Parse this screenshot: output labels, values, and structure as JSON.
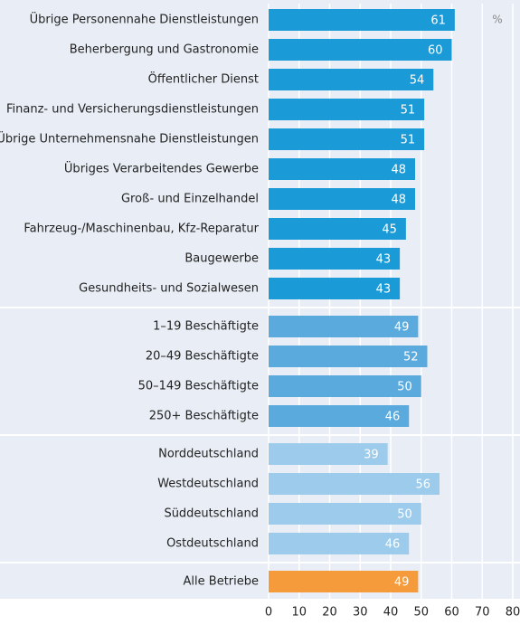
{
  "chart_data": {
    "type": "bar",
    "orientation": "horizontal",
    "unit": "%",
    "categories": [
      "Übrige Personennahe Dienstleistungen",
      "Beherbergung und Gastronomie",
      "Öffentlicher Dienst",
      "Finanz- und Versicherungsdienstleistungen",
      "Übrige Unternehmensnahe Dienstleistungen",
      "Übriges Verarbeitendes Gewerbe",
      "Groß- und Einzelhandel",
      "Fahrzeug-/Maschinenbau, Kfz-Reparatur",
      "Baugewerbe",
      "Gesundheits- und Sozialwesen",
      "1–19 Beschäftigte",
      "20–49 Beschäftigte",
      "50–149 Beschäftigte",
      "250+ Beschäftigte",
      "Norddeutschland",
      "Westdeutschland",
      "Süddeutschland",
      "Ostdeutschland",
      "Alle Betriebe"
    ],
    "values": [
      61,
      60,
      54,
      51,
      51,
      48,
      48,
      45,
      43,
      43,
      49,
      52,
      50,
      46,
      39,
      56,
      50,
      46,
      49
    ],
    "colors": [
      "#1a9ad6",
      "#1a9ad6",
      "#1a9ad6",
      "#1a9ad6",
      "#1a9ad6",
      "#1a9ad6",
      "#1a9ad6",
      "#1a9ad6",
      "#1a9ad6",
      "#1a9ad6",
      "#5aaade",
      "#5aaade",
      "#5aaade",
      "#5aaade",
      "#9ccbec",
      "#9ccbec",
      "#9ccbec",
      "#9ccbec",
      "#f59b3b"
    ],
    "xlim": [
      0,
      80
    ],
    "xticks": [
      0,
      10,
      20,
      30,
      40,
      50,
      60,
      70,
      80
    ],
    "grid": true
  }
}
